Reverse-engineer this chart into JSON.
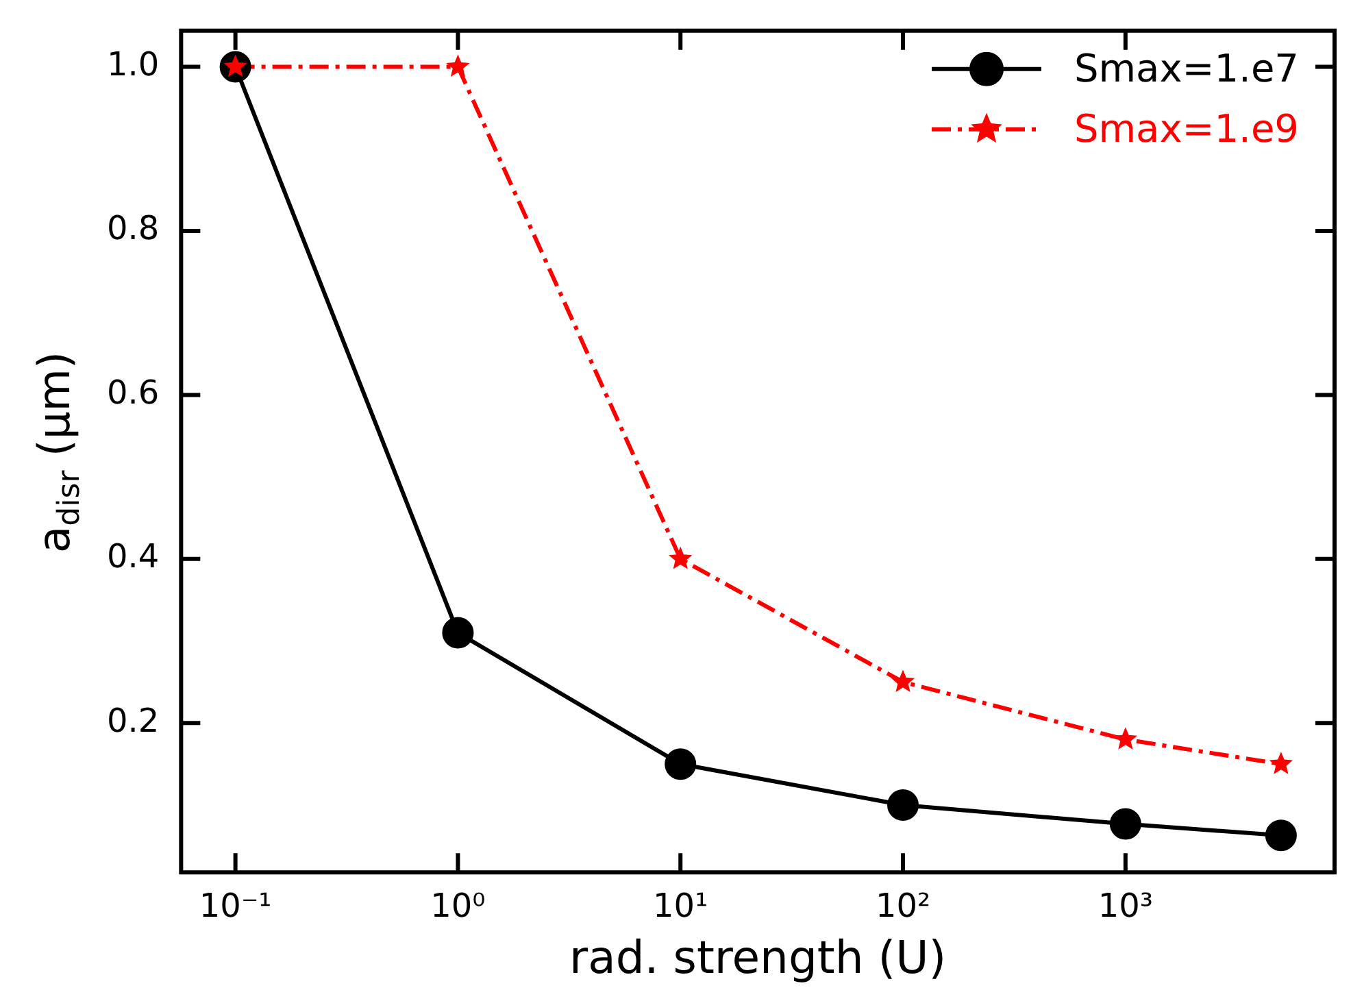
{
  "chart_data": {
    "type": "line",
    "xlabel": "rad. strength (U)",
    "ylabel": "a$_{disr}$ (μm)",
    "log": "x",
    "xlim": [
      0.057,
      8700
    ],
    "xticks": [
      {
        "value": 0.1,
        "label": "10⁻¹"
      },
      {
        "value": 1,
        "label": "10⁰"
      },
      {
        "value": 10,
        "label": "10¹"
      },
      {
        "value": 100,
        "label": "10²"
      },
      {
        "value": 1000,
        "label": "10³"
      }
    ],
    "ylim": [
      0.018,
      1.044
    ],
    "yticks": [
      0.2,
      0.4,
      0.6,
      0.8,
      {
        "value": 1,
        "label": "1.0"
      }
    ],
    "grid": false,
    "legend": "top right",
    "x": [
      0.1,
      1,
      10,
      100,
      1000,
      5000
    ],
    "series": [
      {
        "name": "Smax=1.e7",
        "color": "#000000",
        "marker": "circle",
        "line_style": "solid",
        "values": [
          1.0,
          0.31,
          0.15,
          0.1,
          0.077,
          0.063
        ]
      },
      {
        "name": "Smax=1.e9",
        "color": "#ff0000",
        "marker": "star",
        "line_style": "dashdot",
        "values": [
          1.0,
          1.0,
          0.4,
          0.25,
          0.18,
          0.15
        ]
      }
    ]
  }
}
